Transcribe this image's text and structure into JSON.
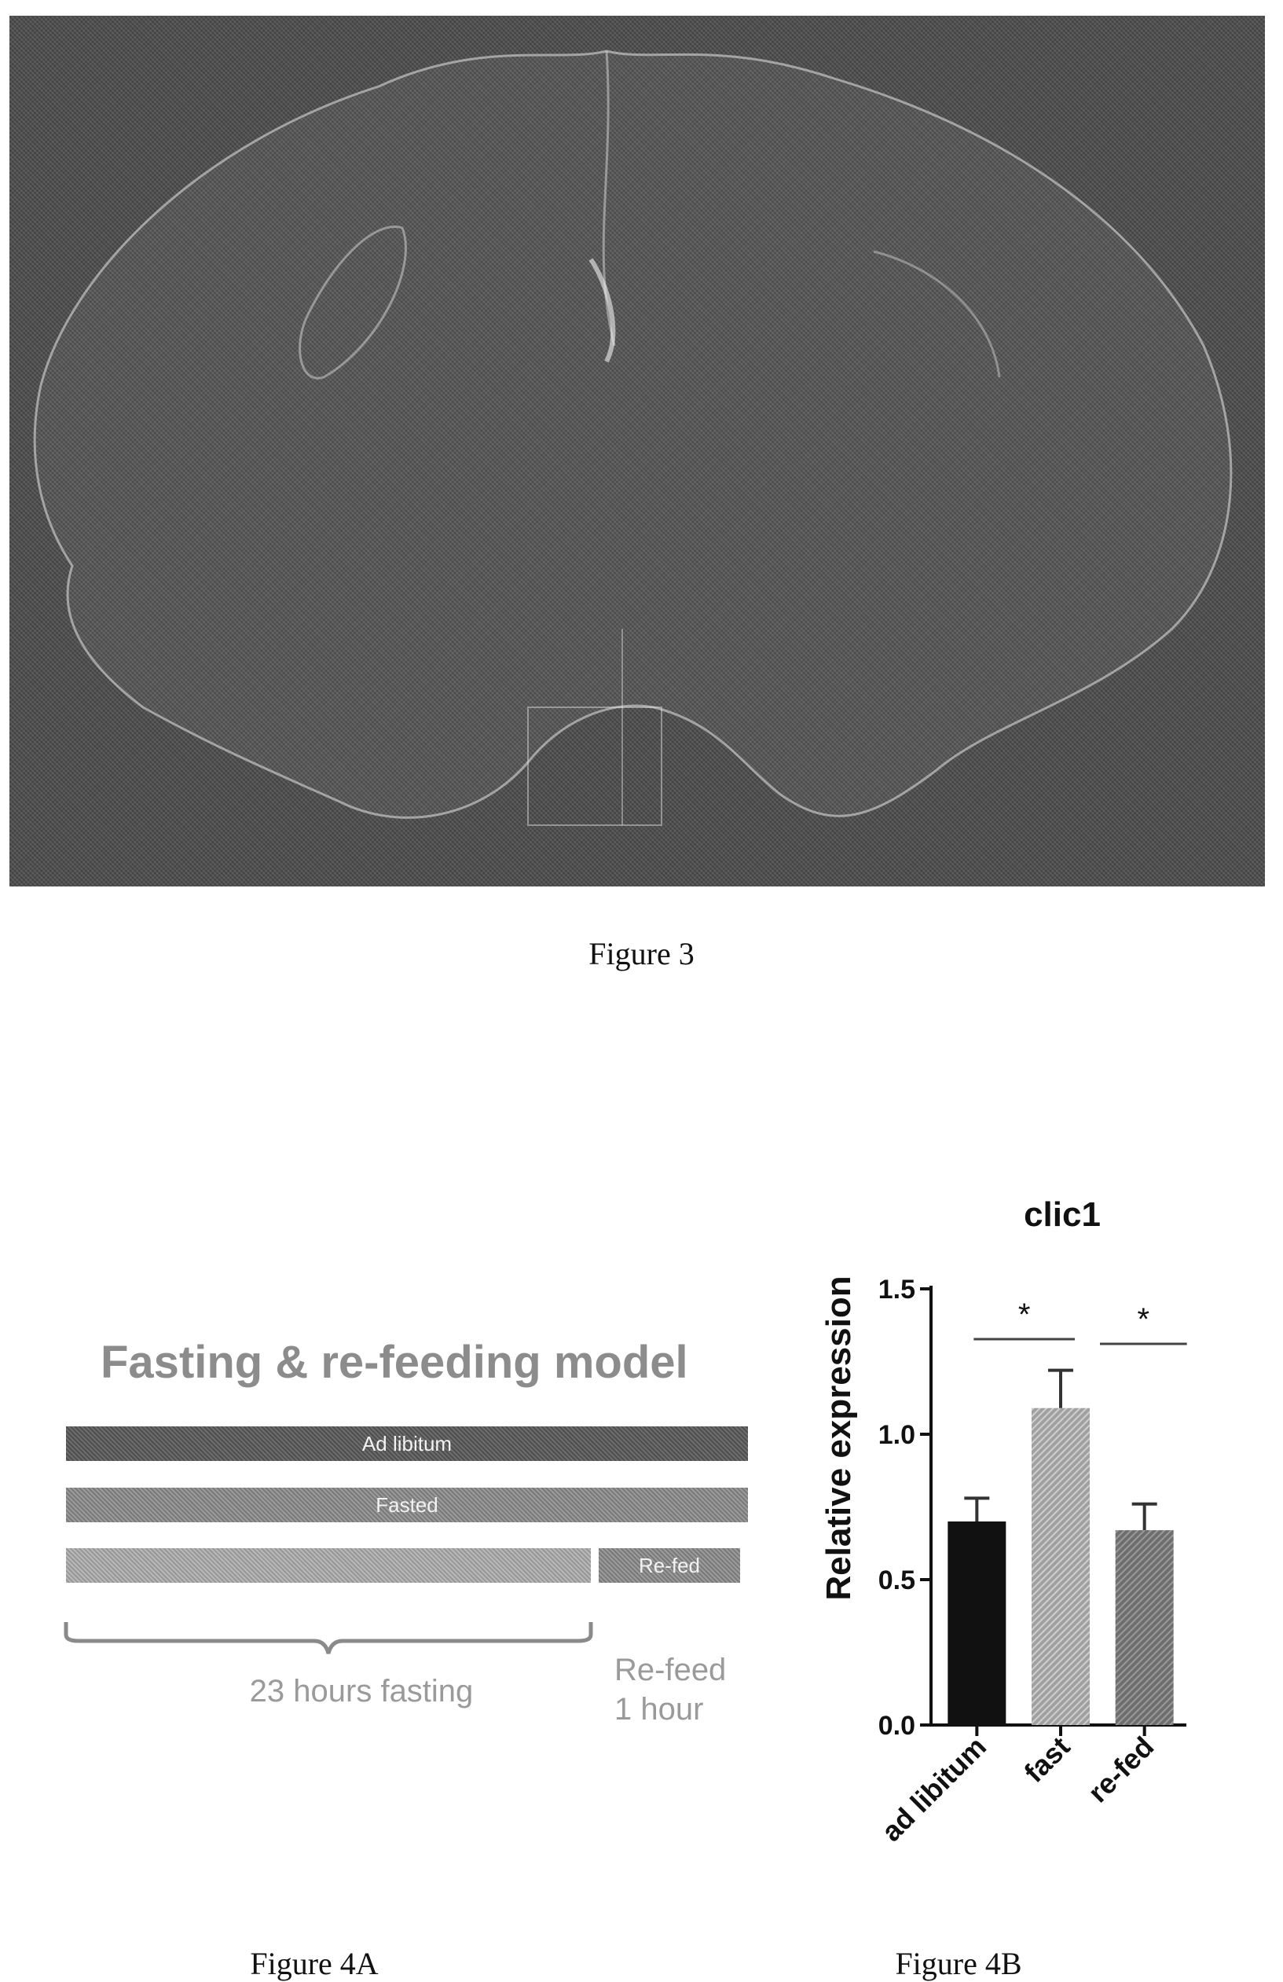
{
  "figure3": {
    "caption": "Figure 3"
  },
  "figure4a": {
    "caption": "Figure 4A",
    "title": "Fasting & re-feeding model",
    "bars": {
      "ad_libitum": "Ad libitum",
      "fasted": "Fasted",
      "refed": "Re-fed"
    },
    "fasting_duration": "23 hours fasting",
    "refeed_line1": "Re-feed",
    "refeed_line2": "1 hour"
  },
  "figure4b": {
    "caption": "Figure 4B"
  },
  "chart_data": {
    "type": "bar",
    "title": "clic1",
    "ylabel": "Relative expression",
    "xlabel": "",
    "categories": [
      "ad libitum",
      "fast",
      "re-fed"
    ],
    "values": [
      0.7,
      1.09,
      0.67
    ],
    "errors": [
      0.08,
      0.13,
      0.09
    ],
    "ylim": [
      0.0,
      1.5
    ],
    "yticks": [
      "0.0",
      "0.5",
      "1.0",
      "1.5"
    ],
    "significance": [
      {
        "from": "ad libitum",
        "to": "fast",
        "label": "*"
      },
      {
        "from": "fast",
        "to": "re-fed",
        "label": "*"
      }
    ],
    "bar_colors": [
      "#111111",
      "#a0a0a0",
      "#6e6e6e"
    ],
    "grid": false
  }
}
